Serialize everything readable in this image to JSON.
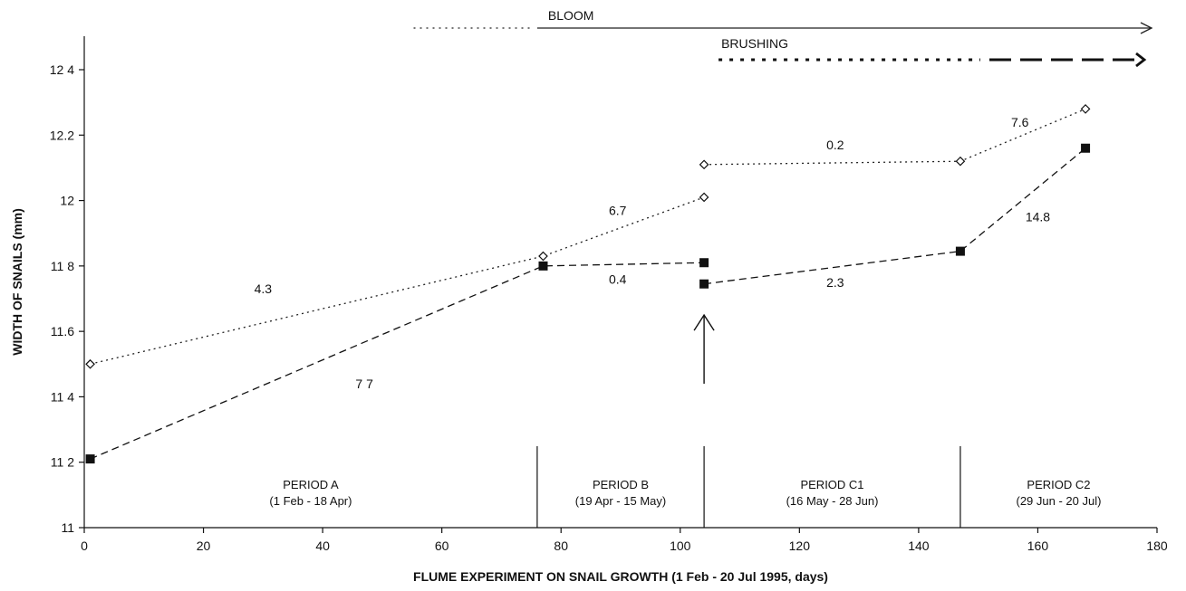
{
  "chart_data": {
    "type": "line",
    "xlabel": "FLUME EXPERIMENT ON SNAIL GROWTH (1 Feb - 20 Jul 1995, days)",
    "ylabel": "WIDTH OF SNAILS (mm)",
    "xlim": [
      0,
      180
    ],
    "ylim": [
      11,
      12.5
    ],
    "x_ticks": [
      0,
      20,
      40,
      60,
      80,
      100,
      120,
      140,
      160,
      180
    ],
    "x_tick_labels": [
      "0",
      "20",
      "40",
      "60",
      "80",
      "100",
      "120",
      "140",
      "160",
      "180"
    ],
    "y_ticks": [
      11,
      11.2,
      11.4,
      11.6,
      11.8,
      12,
      12.2,
      12.4
    ],
    "y_tick_labels": [
      "11",
      "11 2",
      "11 4",
      "11.6",
      "11 8",
      "12",
      "12.2",
      "12 4"
    ],
    "grid": false,
    "series": [
      {
        "style": "dotted-open-diamond",
        "color": "#222222",
        "segments": [
          [
            [
              1,
              11.5
            ],
            [
              77,
              11.83
            ],
            [
              104,
              12.01
            ]
          ],
          [
            [
              104,
              12.11
            ],
            [
              147,
              12.12
            ],
            [
              168,
              12.28
            ]
          ]
        ]
      },
      {
        "style": "dashed-filled-square",
        "color": "#111111",
        "segments": [
          [
            [
              1,
              11.21
            ],
            [
              77,
              11.8
            ],
            [
              104,
              11.81
            ]
          ],
          [
            [
              104,
              11.745
            ],
            [
              147,
              11.845
            ],
            [
              168,
              12.16
            ]
          ]
        ]
      }
    ],
    "annotations": [
      {
        "text": "4.3",
        "x": 30,
        "y": 11.73
      },
      {
        "text": "7 7",
        "x": 47,
        "y": 11.44
      },
      {
        "text": "6.7",
        "x": 89.5,
        "y": 11.97
      },
      {
        "text": "0.4",
        "x": 89.5,
        "y": 11.76
      },
      {
        "text": "0.2",
        "x": 126,
        "y": 12.17
      },
      {
        "text": "2.3",
        "x": 126,
        "y": 11.75
      },
      {
        "text": "7.6",
        "x": 157,
        "y": 12.24
      },
      {
        "text": "14.8",
        "x": 160,
        "y": 11.95
      }
    ],
    "periods": [
      {
        "label": "PERIOD A",
        "dates": "(1 Feb - 18 Apr)",
        "start": 0,
        "end": 76
      },
      {
        "label": "PERIOD B",
        "dates": "(19 Apr - 15 May)",
        "start": 76,
        "end": 104
      },
      {
        "label": "PERIOD C1",
        "dates": "(16 May - 28 Jun)",
        "start": 104,
        "end": 147
      },
      {
        "label": "PERIOD C2",
        "dates": "(29 Jun - 20 Jul)",
        "start": 147,
        "end": 180
      }
    ],
    "period_boundaries": [
      76,
      104,
      147
    ],
    "event_arrow": {
      "x": 104,
      "y_from": 11.44,
      "y_to": 11.65
    },
    "timeline": [
      {
        "label": "BLOOM",
        "dotted_from": 58,
        "solid_from": 76,
        "to": 180
      },
      {
        "label": "BRUSHING",
        "from": 104,
        "to": 180
      }
    ]
  }
}
